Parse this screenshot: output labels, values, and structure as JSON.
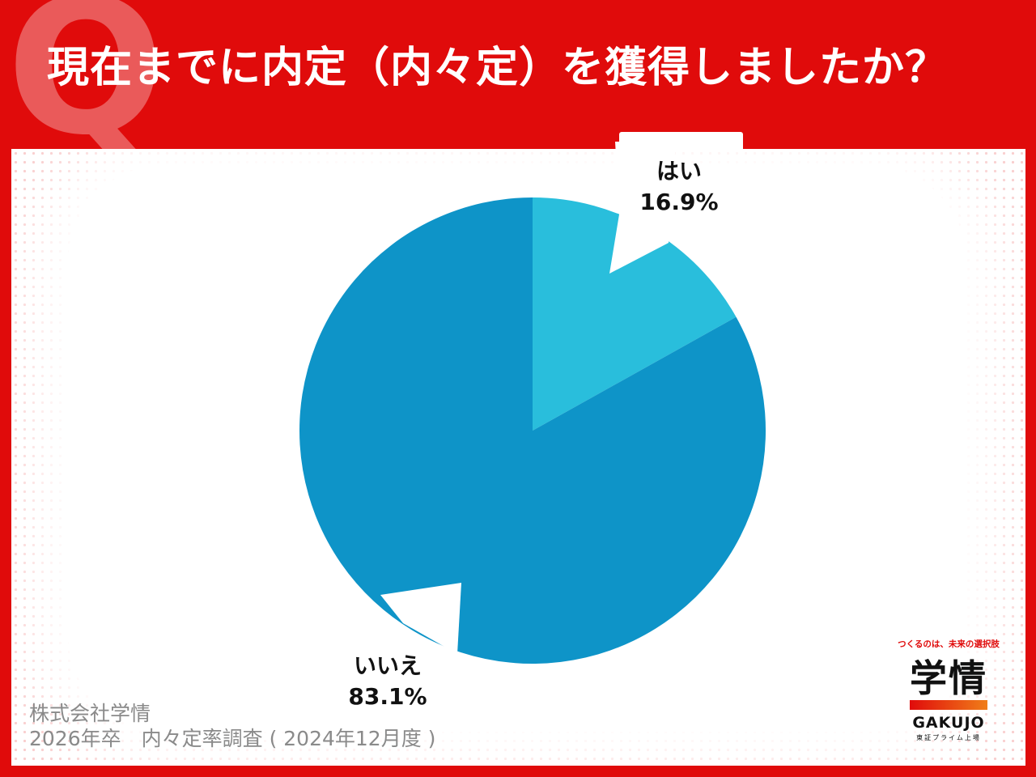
{
  "q_mark": "Q",
  "title": "現在までに内定（内々定）を獲得しましたか？",
  "chart_data": {
    "type": "pie",
    "slices": [
      {
        "label": "はい",
        "value": 16.9,
        "display": "16.9%",
        "color": "#29bedc"
      },
      {
        "label": "いいえ",
        "value": 83.1,
        "display": "83.1%",
        "color": "#0e94c8"
      }
    ]
  },
  "footer": {
    "line1": "株式会社学情",
    "line2": "2026年卒　内々定率調査 ( 2024年12月度 )"
  },
  "logo": {
    "tagline": "つくるのは、未来の選択肢",
    "brand": "学情",
    "roman": "GAKUJO",
    "listing": "東証プライム上場"
  }
}
